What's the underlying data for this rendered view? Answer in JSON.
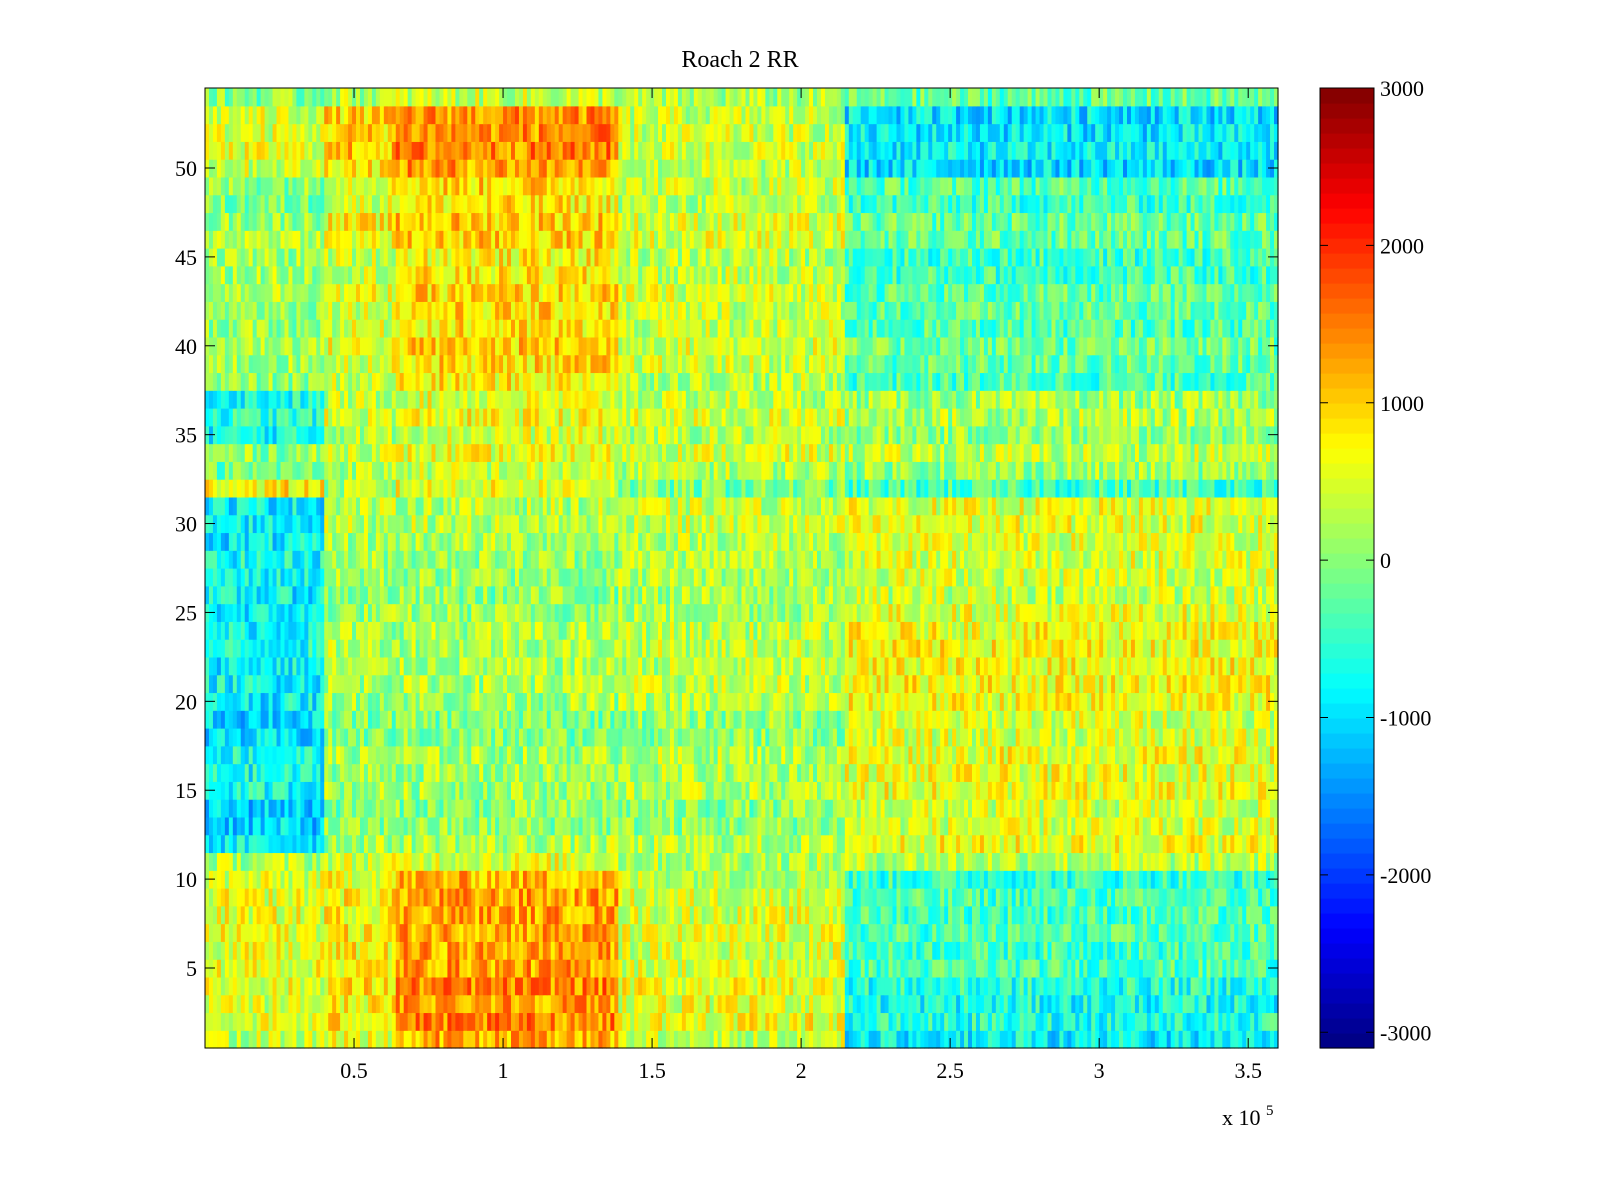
{
  "chart_data": {
    "type": "heatmap",
    "title": "Roach 2 RR",
    "xlabel": "",
    "ylabel": "",
    "x_multiplier_label": "x 10",
    "x_multiplier_exponent": "5",
    "xlim": [
      0,
      360000
    ],
    "ylim": [
      0.5,
      54.5
    ],
    "x_ticks": [
      {
        "value": 50000,
        "label": "0.5"
      },
      {
        "value": 100000,
        "label": "1"
      },
      {
        "value": 150000,
        "label": "1.5"
      },
      {
        "value": 200000,
        "label": "2"
      },
      {
        "value": 250000,
        "label": "2.5"
      },
      {
        "value": 300000,
        "label": "3"
      },
      {
        "value": 350000,
        "label": "3.5"
      }
    ],
    "y_ticks": [
      {
        "value": 5,
        "label": "5"
      },
      {
        "value": 10,
        "label": "10"
      },
      {
        "value": 15,
        "label": "15"
      },
      {
        "value": 20,
        "label": "20"
      },
      {
        "value": 25,
        "label": "25"
      },
      {
        "value": 30,
        "label": "30"
      },
      {
        "value": 35,
        "label": "35"
      },
      {
        "value": 40,
        "label": "40"
      },
      {
        "value": 45,
        "label": "45"
      },
      {
        "value": 50,
        "label": "50"
      }
    ],
    "rows": 54,
    "colorbar": {
      "colormap": "jet",
      "clim": [
        -3100,
        3000
      ],
      "ticks": [
        {
          "value": 3000,
          "label": "3000"
        },
        {
          "value": 2000,
          "label": "2000"
        },
        {
          "value": 1000,
          "label": "1000"
        },
        {
          "value": 0,
          "label": "0"
        },
        {
          "value": -1000,
          "label": "-1000"
        },
        {
          "value": -2000,
          "label": "-2000"
        },
        {
          "value": -3000,
          "label": "-3000"
        }
      ]
    },
    "x_segments": [
      0,
      40000,
      64000,
      139000,
      214000,
      360000
    ],
    "row_groups": [
      {
        "rows": [
          1,
          4
        ],
        "means": [
          400,
          700,
          1300,
          500,
          -750
        ]
      },
      {
        "rows": [
          5,
          10
        ],
        "means": [
          500,
          700,
          1200,
          400,
          -450
        ]
      },
      {
        "rows": [
          11,
          11
        ],
        "means": [
          200,
          400,
          500,
          200,
          250
        ]
      },
      {
        "rows": [
          12,
          14
        ],
        "means": [
          -1000,
          50,
          100,
          100,
          500
        ]
      },
      {
        "rows": [
          15,
          17
        ],
        "means": [
          -750,
          100,
          100,
          200,
          550
        ]
      },
      {
        "rows": [
          18,
          22
        ],
        "means": [
          -900,
          100,
          100,
          200,
          600
        ]
      },
      {
        "rows": [
          23,
          25
        ],
        "means": [
          -800,
          150,
          150,
          250,
          600
        ]
      },
      {
        "rows": [
          26,
          28
        ],
        "means": [
          -700,
          150,
          150,
          300,
          500
        ]
      },
      {
        "rows": [
          29,
          31
        ],
        "means": [
          -900,
          200,
          200,
          300,
          450
        ]
      },
      {
        "rows": [
          32,
          32
        ],
        "means": [
          700,
          100,
          500,
          -200,
          -500
        ]
      },
      {
        "rows": [
          33,
          34
        ],
        "means": [
          0,
          400,
          500,
          400,
          250
        ]
      },
      {
        "rows": [
          35,
          37
        ],
        "means": [
          -600,
          400,
          600,
          400,
          200
        ]
      },
      {
        "rows": [
          38,
          42
        ],
        "means": [
          150,
          500,
          900,
          400,
          -250
        ]
      },
      {
        "rows": [
          43,
          46
        ],
        "means": [
          250,
          500,
          850,
          400,
          -350
        ]
      },
      {
        "rows": [
          47,
          49
        ],
        "means": [
          0,
          600,
          900,
          350,
          -350
        ]
      },
      {
        "rows": [
          50,
          53
        ],
        "means": [
          400,
          900,
          1300,
          300,
          -1000
        ]
      },
      {
        "rows": [
          54,
          54
        ],
        "means": [
          0,
          300,
          400,
          200,
          -200
        ]
      }
    ]
  }
}
